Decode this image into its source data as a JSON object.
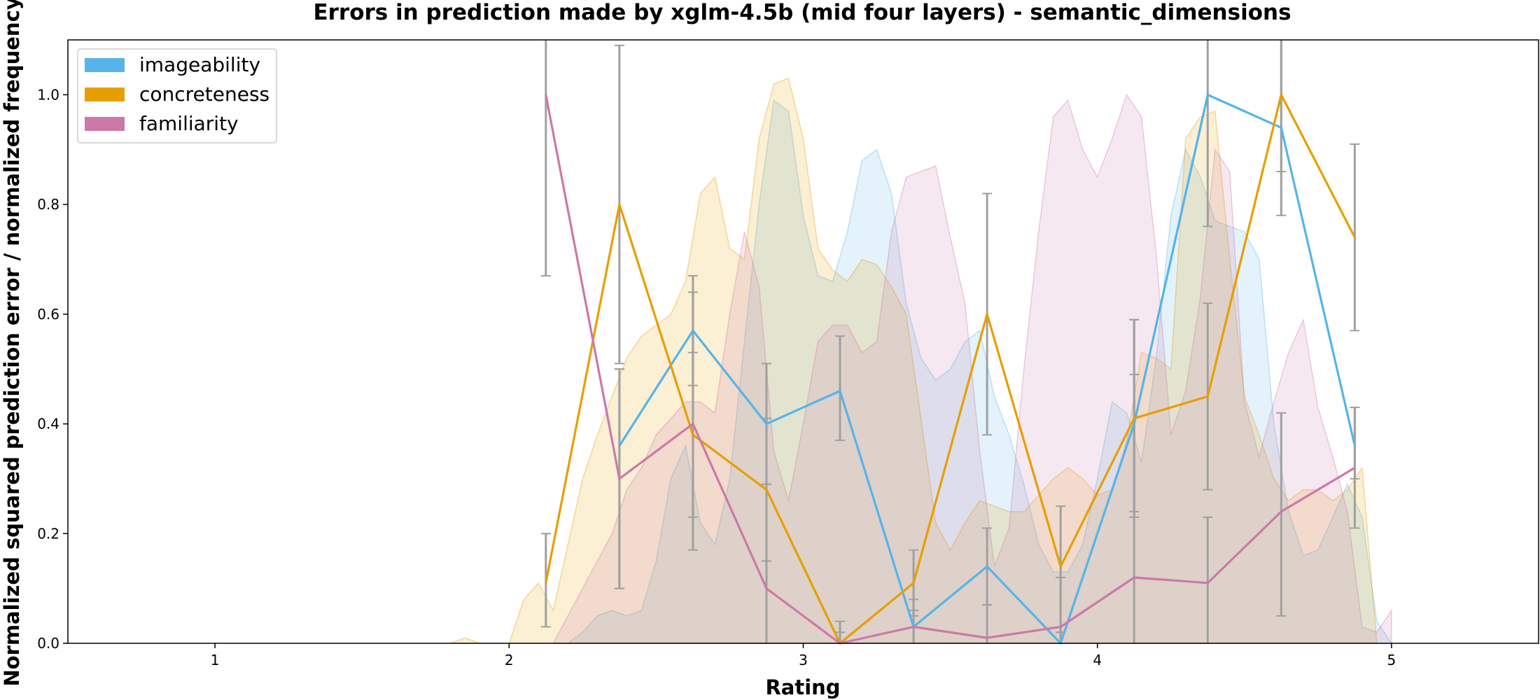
{
  "chart_data": {
    "type": "line",
    "title": "Errors in prediction made by xglm-4.5b (mid four layers) - semantic_dimensions",
    "xlabel": "Rating",
    "ylabel": "Normalized squared prediction error / normalized frequency",
    "xlim": [
      0.5,
      5.5
    ],
    "ylim": [
      0,
      1.1
    ],
    "xticks": [
      "1",
      "2",
      "3",
      "4",
      "5"
    ],
    "yticks": [
      "0.0",
      "0.2",
      "0.4",
      "0.6",
      "0.8",
      "1.0"
    ],
    "grid": false,
    "legend_position": "upper-left",
    "x": [
      2.125,
      2.375,
      2.625,
      2.875,
      3.125,
      3.375,
      3.625,
      3.875,
      4.125,
      4.375,
      4.625,
      4.875
    ],
    "series": [
      {
        "name": "imageability",
        "color": "#56B4E9",
        "values": [
          null,
          0.36,
          0.57,
          0.4,
          0.46,
          0.03,
          0.14,
          0.0,
          0.4,
          1.0,
          0.94,
          0.36
        ],
        "errors": [
          null,
          [
            0.1,
            0.5
          ],
          [
            0.47,
            0.67
          ],
          [
            0.29,
            0.51
          ],
          [
            0.37,
            0.56
          ],
          [
            0.0,
            0.08
          ],
          [
            0.07,
            0.21
          ],
          [
            0.0,
            0.02
          ],
          [
            0.23,
            0.59
          ],
          [
            0.76,
            1.1
          ],
          [
            0.78,
            1.1
          ],
          [
            0.3,
            0.43
          ]
        ],
        "frequency": {
          "x": [
            2.2,
            2.25,
            2.3,
            2.35,
            2.4,
            2.45,
            2.5,
            2.55,
            2.6,
            2.65,
            2.7,
            2.75,
            2.8,
            2.85,
            2.9,
            2.95,
            3.0,
            3.05,
            3.1,
            3.15,
            3.2,
            3.25,
            3.3,
            3.35,
            3.4,
            3.45,
            3.5,
            3.55,
            3.6,
            3.65,
            3.7,
            3.75,
            3.8,
            3.85,
            3.9,
            3.95,
            4.0,
            4.05,
            4.1,
            4.15,
            4.2,
            4.25,
            4.3,
            4.35,
            4.4,
            4.45,
            4.5,
            4.55,
            4.6,
            4.65,
            4.7,
            4.75,
            4.8,
            4.85,
            4.9,
            4.95,
            5.0
          ],
          "y": [
            0.0,
            0.02,
            0.05,
            0.06,
            0.05,
            0.06,
            0.15,
            0.3,
            0.36,
            0.22,
            0.18,
            0.3,
            0.55,
            0.8,
            0.99,
            0.97,
            0.78,
            0.67,
            0.66,
            0.75,
            0.88,
            0.9,
            0.82,
            0.62,
            0.52,
            0.48,
            0.5,
            0.55,
            0.57,
            0.45,
            0.38,
            0.29,
            0.18,
            0.13,
            0.13,
            0.18,
            0.3,
            0.44,
            0.42,
            0.33,
            0.52,
            0.78,
            0.9,
            0.85,
            0.77,
            0.76,
            0.75,
            0.7,
            0.4,
            0.24,
            0.16,
            0.17,
            0.23,
            0.29,
            0.23,
            0.04,
            0.0
          ]
        }
      },
      {
        "name": "concreteness",
        "color": "#E69F00",
        "values": [
          0.11,
          0.8,
          0.38,
          0.28,
          0.0,
          0.11,
          0.6,
          0.14,
          0.41,
          0.45,
          1.0,
          0.74
        ],
        "errors": [
          [
            0.03,
            0.2
          ],
          [
            0.51,
            1.09
          ],
          [
            0.23,
            0.53
          ],
          [
            0.15,
            0.41
          ],
          [
            0.0,
            0.04
          ],
          [
            0.05,
            0.17
          ],
          [
            0.38,
            0.82
          ],
          [
            0.02,
            0.25
          ],
          [
            0.24,
            0.59
          ],
          [
            0.28,
            0.62
          ],
          [
            0.86,
            1.1
          ],
          [
            0.57,
            0.91
          ]
        ],
        "frequency": {
          "x": [
            1.8,
            1.85,
            1.9,
            1.95,
            2.0,
            2.05,
            2.1,
            2.15,
            2.2,
            2.25,
            2.3,
            2.35,
            2.4,
            2.45,
            2.5,
            2.55,
            2.6,
            2.65,
            2.7,
            2.75,
            2.8,
            2.85,
            2.9,
            2.95,
            3.0,
            3.05,
            3.1,
            3.15,
            3.2,
            3.25,
            3.3,
            3.35,
            3.4,
            3.45,
            3.5,
            3.55,
            3.6,
            3.65,
            3.7,
            3.75,
            3.8,
            3.85,
            3.9,
            3.95,
            4.0,
            4.05,
            4.1,
            4.15,
            4.2,
            4.25,
            4.3,
            4.35,
            4.4,
            4.45,
            4.5,
            4.55,
            4.6,
            4.65,
            4.7,
            4.75,
            4.8,
            4.85,
            4.9,
            4.95
          ],
          "y": [
            0.0,
            0.01,
            0.0,
            0.0,
            0.0,
            0.08,
            0.11,
            0.06,
            0.18,
            0.3,
            0.38,
            0.45,
            0.52,
            0.56,
            0.58,
            0.6,
            0.66,
            0.82,
            0.85,
            0.72,
            0.7,
            0.92,
            1.02,
            1.03,
            0.92,
            0.72,
            0.68,
            0.66,
            0.7,
            0.69,
            0.65,
            0.6,
            0.41,
            0.22,
            0.17,
            0.22,
            0.26,
            0.25,
            0.24,
            0.24,
            0.27,
            0.3,
            0.32,
            0.3,
            0.27,
            0.28,
            0.37,
            0.53,
            0.52,
            0.5,
            0.92,
            0.96,
            0.97,
            0.7,
            0.45,
            0.38,
            0.3,
            0.26,
            0.28,
            0.28,
            0.26,
            0.28,
            0.32,
            0.0
          ]
        }
      },
      {
        "name": "familiarity",
        "color": "#CC79A7",
        "values": [
          1.0,
          0.3,
          0.4,
          0.1,
          0.0,
          0.03,
          0.01,
          0.03,
          0.12,
          0.11,
          0.24,
          0.32
        ],
        "errors": [
          [
            0.67,
            1.1
          ],
          [
            0.1,
            0.5
          ],
          [
            0.17,
            0.64
          ],
          [
            0.0,
            0.29
          ],
          [
            0.0,
            0.02
          ],
          [
            0.0,
            0.06
          ],
          [
            0.0,
            0.07
          ],
          [
            0.0,
            0.12
          ],
          [
            0.0,
            0.49
          ],
          [
            0.0,
            0.23
          ],
          [
            0.05,
            0.42
          ],
          [
            0.21,
            0.43
          ]
        ],
        "frequency": {
          "x": [
            2.15,
            2.2,
            2.25,
            2.3,
            2.35,
            2.4,
            2.45,
            2.5,
            2.55,
            2.6,
            2.65,
            2.7,
            2.75,
            2.8,
            2.85,
            2.9,
            2.95,
            3.0,
            3.05,
            3.1,
            3.15,
            3.2,
            3.25,
            3.3,
            3.35,
            3.4,
            3.45,
            3.5,
            3.55,
            3.6,
            3.65,
            3.7,
            3.75,
            3.8,
            3.85,
            3.9,
            3.95,
            4.0,
            4.05,
            4.1,
            4.15,
            4.2,
            4.25,
            4.3,
            4.35,
            4.4,
            4.45,
            4.5,
            4.55,
            4.6,
            4.65,
            4.7,
            4.75,
            4.8,
            4.85,
            4.9,
            4.95,
            5.0
          ],
          "y": [
            0.0,
            0.05,
            0.1,
            0.15,
            0.2,
            0.28,
            0.32,
            0.38,
            0.41,
            0.44,
            0.44,
            0.42,
            0.6,
            0.75,
            0.65,
            0.35,
            0.26,
            0.4,
            0.55,
            0.58,
            0.58,
            0.53,
            0.55,
            0.75,
            0.85,
            0.86,
            0.87,
            0.74,
            0.62,
            0.35,
            0.14,
            0.21,
            0.5,
            0.75,
            0.96,
            0.99,
            0.9,
            0.85,
            0.92,
            1.0,
            0.96,
            0.71,
            0.38,
            0.46,
            0.63,
            0.9,
            0.86,
            0.44,
            0.34,
            0.44,
            0.53,
            0.59,
            0.43,
            0.34,
            0.24,
            0.03,
            0.02,
            0.06
          ]
        }
      }
    ]
  }
}
